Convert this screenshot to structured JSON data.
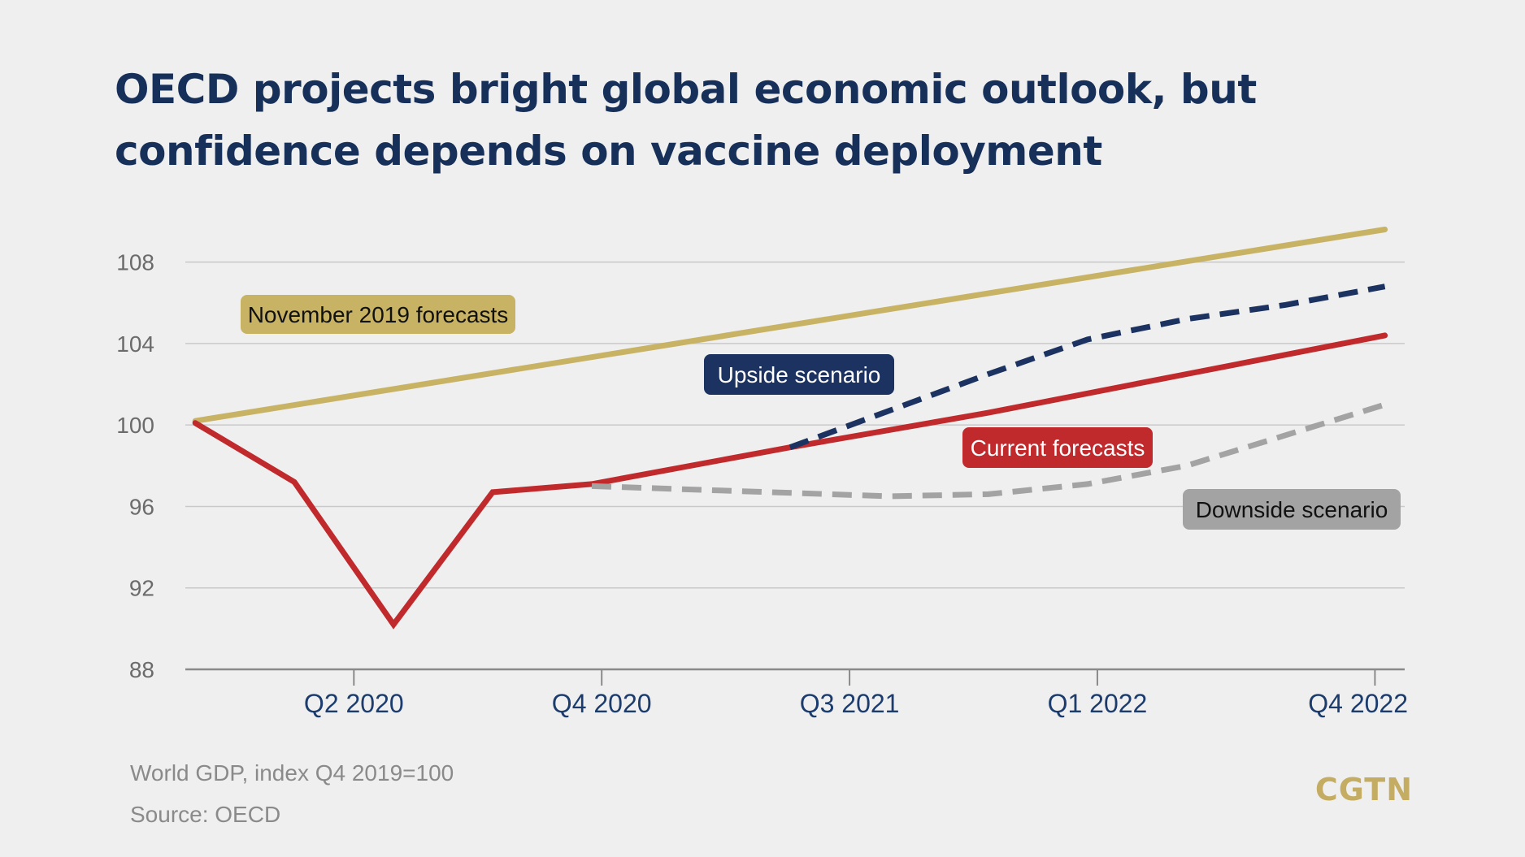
{
  "title": "OECD projects bright global economic outlook, but confidence depends on vaccine deployment",
  "chart_data": {
    "type": "line",
    "x": [
      0,
      1,
      2,
      3,
      4,
      5,
      6,
      7,
      8,
      9,
      10,
      11,
      12
    ],
    "xticks": [
      {
        "x": 1.6,
        "label": "Q2 2020"
      },
      {
        "x": 4.1,
        "label": "Q4 2020"
      },
      {
        "x": 6.6,
        "label": "Q3 2021"
      },
      {
        "x": 9.1,
        "label": "Q1 2022"
      },
      {
        "x": 11.9,
        "label": "Q4 2022"
      }
    ],
    "yticks": [
      88,
      92,
      96,
      100,
      104,
      108
    ],
    "ylim": [
      88,
      109.7
    ],
    "xlim": [
      -0.1,
      12.2
    ],
    "grid": true,
    "series": [
      {
        "name": "November 2019 forecasts",
        "color": "#c8b264",
        "dash": false,
        "x": [
          0,
          12
        ],
        "y": [
          100.2,
          109.6
        ]
      },
      {
        "name": "Current forecasts",
        "color": "#c02a2c",
        "dash": false,
        "x": [
          0,
          1,
          2,
          3,
          4,
          6,
          8,
          10,
          12
        ],
        "y": [
          100.1,
          97.2,
          90.2,
          96.7,
          97.1,
          98.9,
          100.6,
          102.5,
          104.4
        ]
      },
      {
        "name": "Upside scenario",
        "color": "#1c3361",
        "dash": true,
        "x": [
          6,
          8,
          9,
          10,
          11,
          12
        ],
        "y": [
          98.9,
          102.5,
          104.2,
          105.2,
          105.9,
          106.8
        ]
      },
      {
        "name": "Downside scenario",
        "color": "#a3a3a3",
        "dash": true,
        "x": [
          4,
          7,
          8,
          9,
          10,
          11,
          12
        ],
        "y": [
          97.0,
          96.5,
          96.6,
          97.1,
          98.0,
          99.5,
          101.0
        ]
      }
    ],
    "ylabel": "World GDP, index Q4 2019=100"
  },
  "labels": [
    {
      "text": "November 2019 forecasts",
      "bg": "#c8b264",
      "fg": "#111111"
    },
    {
      "text": "Upside scenario",
      "bg": "#1c3361",
      "fg": "#ffffff"
    },
    {
      "text": "Current forecasts",
      "bg": "#c02a2c",
      "fg": "#ffffff"
    },
    {
      "text": "Downside scenario",
      "bg": "#a3a3a3",
      "fg": "#111111"
    }
  ],
  "footnotes": {
    "unit": "World GDP, index Q4 2019=100",
    "source": "Source: OECD"
  },
  "logo": "CGTN"
}
